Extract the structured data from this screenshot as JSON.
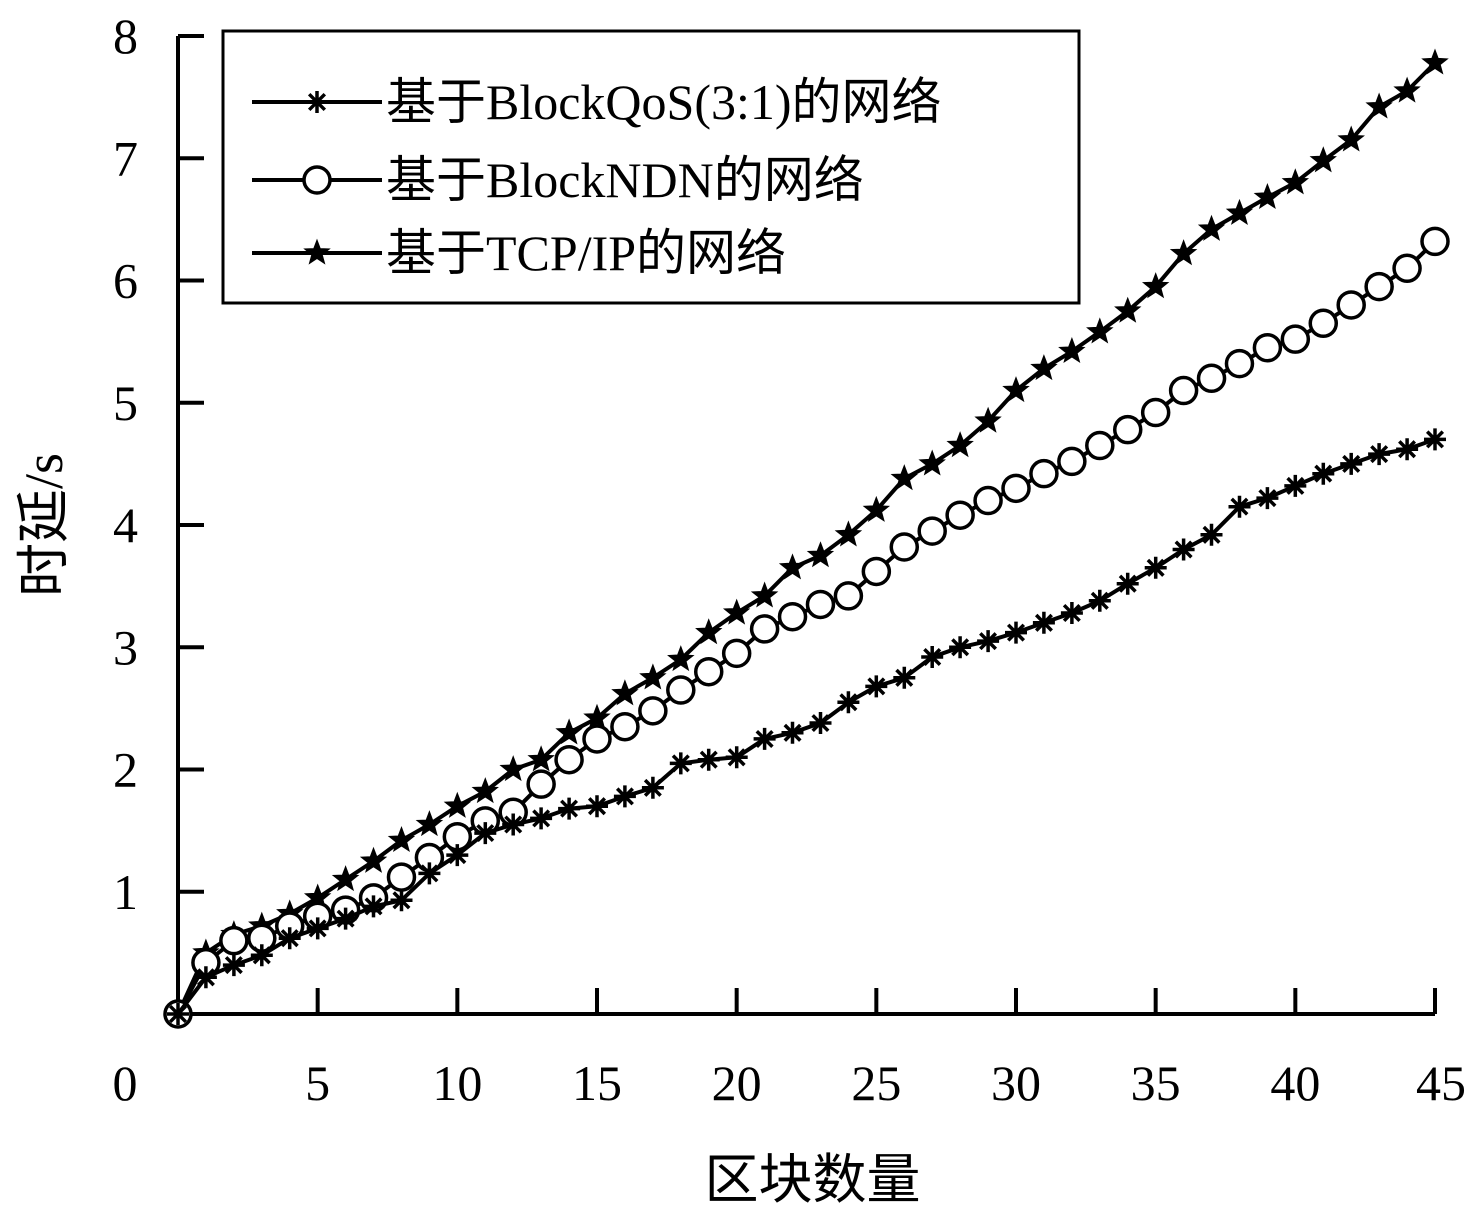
{
  "chart_data": {
    "type": "line",
    "xlabel": "区块数量",
    "ylabel": "时延/s",
    "xlim": [
      0,
      45
    ],
    "ylim": [
      0,
      8
    ],
    "x_ticks": [
      "0",
      "5",
      "10",
      "15",
      "20",
      "25",
      "30",
      "35",
      "40",
      "45"
    ],
    "y_ticks": [
      "1",
      "2",
      "3",
      "4",
      "5",
      "6",
      "7",
      "8"
    ],
    "grid": false,
    "legend_position": "top-left",
    "x": [
      0,
      1,
      2,
      3,
      4,
      5,
      6,
      7,
      8,
      9,
      10,
      11,
      12,
      13,
      14,
      15,
      16,
      17,
      18,
      19,
      20,
      21,
      22,
      23,
      24,
      25,
      26,
      27,
      28,
      29,
      30,
      31,
      32,
      33,
      34,
      35,
      36,
      37,
      38,
      39,
      40,
      41,
      42,
      43,
      44,
      45
    ],
    "series": [
      {
        "name": "基于BlockQoS(3:1)的网络",
        "marker": "asterisk",
        "values": [
          0,
          0.3,
          0.4,
          0.48,
          0.62,
          0.7,
          0.78,
          0.88,
          0.93,
          1.15,
          1.3,
          1.48,
          1.55,
          1.6,
          1.68,
          1.7,
          1.78,
          1.85,
          2.05,
          2.08,
          2.1,
          2.25,
          2.3,
          2.38,
          2.55,
          2.68,
          2.75,
          2.92,
          3.0,
          3.05,
          3.12,
          3.2,
          3.28,
          3.38,
          3.52,
          3.65,
          3.8,
          3.92,
          4.15,
          4.22,
          4.32,
          4.42,
          4.5,
          4.58,
          4.62,
          4.7
        ]
      },
      {
        "name": "基于BlockNDN的网络",
        "marker": "circle",
        "values": [
          0,
          0.42,
          0.6,
          0.62,
          0.72,
          0.8,
          0.85,
          0.95,
          1.12,
          1.28,
          1.45,
          1.58,
          1.65,
          1.88,
          2.08,
          2.25,
          2.35,
          2.48,
          2.65,
          2.8,
          2.95,
          3.15,
          3.25,
          3.35,
          3.42,
          3.62,
          3.82,
          3.95,
          4.08,
          4.2,
          4.3,
          4.42,
          4.52,
          4.65,
          4.78,
          4.92,
          5.1,
          5.2,
          5.32,
          5.45,
          5.52,
          5.65,
          5.8,
          5.95,
          6.1,
          6.32
        ]
      },
      {
        "name": "基于TCP/IP的网络",
        "marker": "star",
        "values": [
          0,
          0.5,
          0.65,
          0.72,
          0.82,
          0.95,
          1.1,
          1.25,
          1.42,
          1.55,
          1.7,
          1.82,
          2.0,
          2.08,
          2.3,
          2.42,
          2.62,
          2.75,
          2.9,
          3.12,
          3.28,
          3.42,
          3.65,
          3.75,
          3.92,
          4.12,
          4.38,
          4.5,
          4.65,
          4.85,
          5.1,
          5.28,
          5.42,
          5.58,
          5.75,
          5.95,
          6.22,
          6.42,
          6.55,
          6.68,
          6.8,
          6.98,
          7.15,
          7.42,
          7.55,
          7.78
        ]
      }
    ]
  }
}
